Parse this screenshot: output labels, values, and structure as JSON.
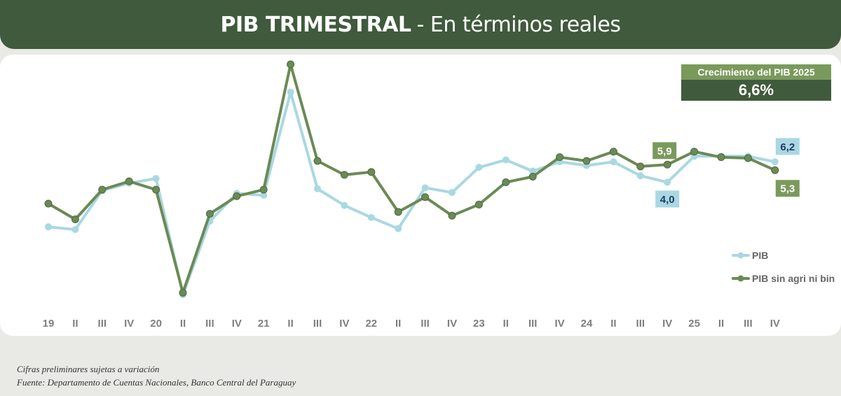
{
  "header": {
    "title_bold": "PIB TRIMESTRAL",
    "title_rest": "- En términos reales"
  },
  "kpi": {
    "label": "Crecimiento del PIB 2025",
    "value": "6,6%"
  },
  "footnotes": {
    "line1": "Cifras preliminares sujetas a variación",
    "line2": "Fuente: Departamento de Cuentas Nacionales, Banco Central del Paraguay"
  },
  "colors": {
    "pib": "#a9d8e3",
    "pib_sin": "#6b8a55",
    "header_bg": "#3f5a3c",
    "label_blue_bg": "#a9d8e3",
    "label_green_bg": "#7a9a5c"
  },
  "chart_data": {
    "type": "line",
    "categories": [
      "19",
      "II",
      "III",
      "IV",
      "20",
      "II",
      "III",
      "IV",
      "21",
      "II",
      "III",
      "IV",
      "22",
      "II",
      "III",
      "IV",
      "23",
      "II",
      "III",
      "IV",
      "24",
      "II",
      "III",
      "IV",
      "25",
      "II",
      "III",
      "IV"
    ],
    "series": [
      {
        "name": "PIB",
        "values": [
          -0.8,
          -1.1,
          3.1,
          3.9,
          4.4,
          -8.1,
          -0.2,
          2.8,
          2.6,
          13.7,
          3.3,
          1.5,
          0.2,
          -1.0,
          3.4,
          2.9,
          5.6,
          6.4,
          5.2,
          6.2,
          5.8,
          6.2,
          4.7,
          4.0,
          6.8,
          6.8,
          6.8,
          6.2
        ],
        "labels": [
          {
            "index": 23,
            "text": "4,0"
          },
          {
            "index": 27,
            "text": "6,2"
          }
        ]
      },
      {
        "name": "PIB sin agri ni bin",
        "values": [
          1.7,
          0.0,
          3.2,
          4.1,
          3.2,
          -7.9,
          0.6,
          2.5,
          3.2,
          16.7,
          6.3,
          4.8,
          5.1,
          0.8,
          2.4,
          0.4,
          1.6,
          4.0,
          4.6,
          6.7,
          6.3,
          7.3,
          5.7,
          5.9,
          7.3,
          6.7,
          6.6,
          5.3
        ],
        "labels": [
          {
            "index": 23,
            "text": "5,9"
          },
          {
            "index": 27,
            "text": "5,3"
          }
        ]
      }
    ],
    "legend": "right",
    "grid": false
  }
}
